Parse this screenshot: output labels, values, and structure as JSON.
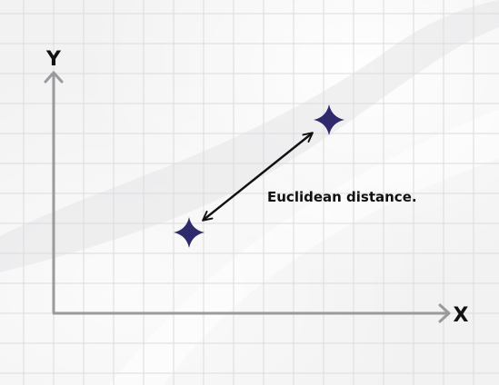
{
  "axes": {
    "x_label": "X",
    "y_label": "Y"
  },
  "annotation": {
    "text": "Euclidean distance."
  },
  "colors": {
    "background": "#f2f2f3",
    "grid": "#dcdcde",
    "axis": "#9a9a9c",
    "point": "#2e2a6b",
    "arrow": "#111111",
    "text": "#111111"
  },
  "points": [
    {
      "name": "point-a",
      "icon": "four-point-star-icon"
    },
    {
      "name": "point-b",
      "icon": "four-point-star-icon"
    }
  ]
}
